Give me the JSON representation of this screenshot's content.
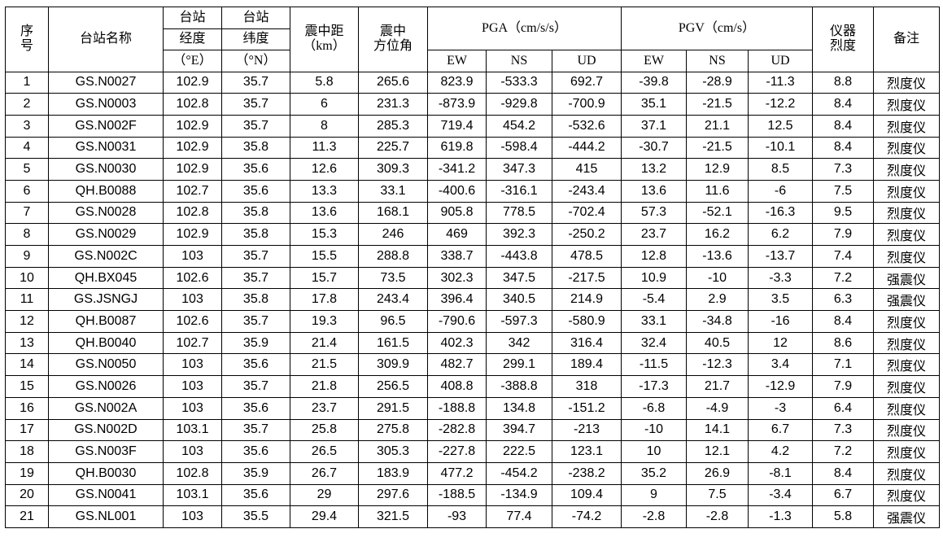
{
  "header": {
    "index": "序号",
    "station_name": "台站名称",
    "lon_top": "台站",
    "lon_mid": "经度",
    "lon_unit": "（°E）",
    "lat_top": "台站",
    "lat_mid": "纬度",
    "lat_unit": "（°N）",
    "epi_dist": "震中距",
    "epi_dist_unit": "（km）",
    "azimuth_1": "震中",
    "azimuth_2": "方位角",
    "pga": "PGA（cm/s/s）",
    "pgv": "PGV（cm/s）",
    "ew": "EW",
    "ns": "NS",
    "ud": "UD",
    "intensity": "仪器烈度",
    "note": "备注"
  },
  "rows": [
    [
      "1",
      "GS.N0027",
      "102.9",
      "35.7",
      "5.8",
      "265.6",
      "823.9",
      "-533.3",
      "692.7",
      "-39.8",
      "-28.9",
      "-11.3",
      "8.8",
      "烈度仪"
    ],
    [
      "2",
      "GS.N0003",
      "102.8",
      "35.7",
      "6",
      "231.3",
      "-873.9",
      "-929.8",
      "-700.9",
      "35.1",
      "-21.5",
      "-12.2",
      "8.4",
      "烈度仪"
    ],
    [
      "3",
      "GS.N002F",
      "102.9",
      "35.7",
      "8",
      "285.3",
      "719.4",
      "454.2",
      "-532.6",
      "37.1",
      "21.1",
      "12.5",
      "8.4",
      "烈度仪"
    ],
    [
      "4",
      "GS.N0031",
      "102.9",
      "35.8",
      "11.3",
      "225.7",
      "619.8",
      "-598.4",
      "-444.2",
      "-30.7",
      "-21.5",
      "-10.1",
      "8.4",
      "烈度仪"
    ],
    [
      "5",
      "GS.N0030",
      "102.9",
      "35.6",
      "12.6",
      "309.3",
      "-341.2",
      "347.3",
      "415",
      "13.2",
      "12.9",
      "8.5",
      "7.3",
      "烈度仪"
    ],
    [
      "6",
      "QH.B0088",
      "102.7",
      "35.6",
      "13.3",
      "33.1",
      "-400.6",
      "-316.1",
      "-243.4",
      "13.6",
      "11.6",
      "-6",
      "7.5",
      "烈度仪"
    ],
    [
      "7",
      "GS.N0028",
      "102.8",
      "35.8",
      "13.6",
      "168.1",
      "905.8",
      "778.5",
      "-702.4",
      "57.3",
      "-52.1",
      "-16.3",
      "9.5",
      "烈度仪"
    ],
    [
      "8",
      "GS.N0029",
      "102.9",
      "35.8",
      "15.3",
      "246",
      "469",
      "392.3",
      "-250.2",
      "23.7",
      "16.2",
      "6.2",
      "7.9",
      "烈度仪"
    ],
    [
      "9",
      "GS.N002C",
      "103",
      "35.7",
      "15.5",
      "288.8",
      "338.7",
      "-443.8",
      "478.5",
      "12.8",
      "-13.6",
      "-13.7",
      "7.4",
      "烈度仪"
    ],
    [
      "10",
      "QH.BX045",
      "102.6",
      "35.7",
      "15.7",
      "73.5",
      "302.3",
      "347.5",
      "-217.5",
      "10.9",
      "-10",
      "-3.3",
      "7.2",
      "强震仪"
    ],
    [
      "11",
      "GS.JSNGJ",
      "103",
      "35.8",
      "17.8",
      "243.4",
      "396.4",
      "340.5",
      "214.9",
      "-5.4",
      "2.9",
      "3.5",
      "6.3",
      "强震仪"
    ],
    [
      "12",
      "QH.B0087",
      "102.6",
      "35.7",
      "19.3",
      "96.5",
      "-790.6",
      "-597.3",
      "-580.9",
      "33.1",
      "-34.8",
      "-16",
      "8.4",
      "烈度仪"
    ],
    [
      "13",
      "QH.B0040",
      "102.7",
      "35.9",
      "21.4",
      "161.5",
      "402.3",
      "342",
      "316.4",
      "32.4",
      "40.5",
      "12",
      "8.6",
      "烈度仪"
    ],
    [
      "14",
      "GS.N0050",
      "103",
      "35.6",
      "21.5",
      "309.9",
      "482.7",
      "299.1",
      "189.4",
      "-11.5",
      "-12.3",
      "3.4",
      "7.1",
      "烈度仪"
    ],
    [
      "15",
      "GS.N0026",
      "103",
      "35.7",
      "21.8",
      "256.5",
      "408.8",
      "-388.8",
      "318",
      "-17.3",
      "21.7",
      "-12.9",
      "7.9",
      "烈度仪"
    ],
    [
      "16",
      "GS.N002A",
      "103",
      "35.6",
      "23.7",
      "291.5",
      "-188.8",
      "134.8",
      "-151.2",
      "-6.8",
      "-4.9",
      "-3",
      "6.4",
      "烈度仪"
    ],
    [
      "17",
      "GS.N002D",
      "103.1",
      "35.7",
      "25.8",
      "275.8",
      "-282.8",
      "394.7",
      "-213",
      "-10",
      "14.1",
      "6.7",
      "7.3",
      "烈度仪"
    ],
    [
      "18",
      "GS.N003F",
      "103",
      "35.6",
      "26.5",
      "305.3",
      "-227.8",
      "222.5",
      "123.1",
      "10",
      "12.1",
      "4.2",
      "7.2",
      "烈度仪"
    ],
    [
      "19",
      "QH.B0030",
      "102.8",
      "35.9",
      "26.7",
      "183.9",
      "477.2",
      "-454.2",
      "-238.2",
      "35.2",
      "26.9",
      "-8.1",
      "8.4",
      "烈度仪"
    ],
    [
      "20",
      "GS.N0041",
      "103.1",
      "35.6",
      "29",
      "297.6",
      "-188.5",
      "-134.9",
      "109.4",
      "9",
      "7.5",
      "-3.4",
      "6.7",
      "烈度仪"
    ],
    [
      "21",
      "GS.NL001",
      "103",
      "35.5",
      "29.4",
      "321.5",
      "-93",
      "77.4",
      "-74.2",
      "-2.8",
      "-2.8",
      "-1.3",
      "5.8",
      "强震仪"
    ]
  ]
}
